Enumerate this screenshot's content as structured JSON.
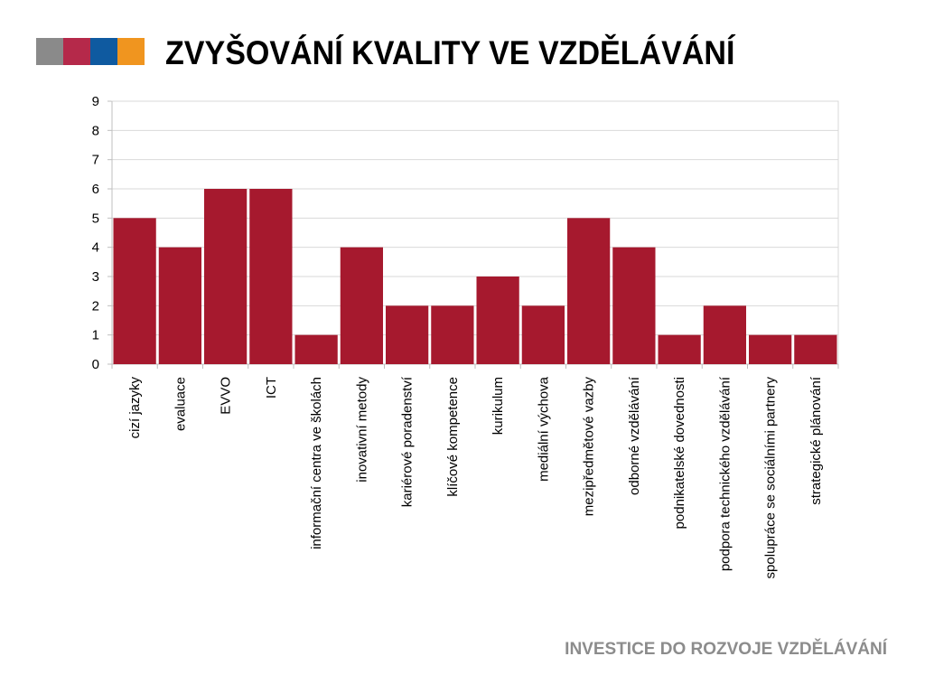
{
  "header": {
    "title": "ZVYŠOVÁNÍ KVALITY VE VZDĚLÁVÁNÍ",
    "logo_colors": [
      "#8a8a8a",
      "#b5294a",
      "#0f5aa0",
      "#f0951f"
    ]
  },
  "footer": {
    "text": "INVESTICE DO ROZVOJE VZDĚLÁVÁNÍ"
  },
  "chart_data": {
    "type": "bar",
    "title": "",
    "xlabel": "",
    "ylabel": "",
    "ylim": [
      0,
      9
    ],
    "yticks": [
      0,
      1,
      2,
      3,
      4,
      5,
      6,
      7,
      8,
      9
    ],
    "grid": true,
    "legend": "none",
    "bar_color": "#a6192e",
    "categories": [
      "cizí jazyky",
      "evaluace",
      "EVVO",
      "ICT",
      "informační centra ve školách",
      "inovativní metody",
      "kariérové poradenství",
      "klíčové kompetence",
      "kurikulum",
      "mediální výchova",
      "mezipředmětové vazby",
      "odborné vzdělávání",
      "podnikatelské dovednosti",
      "podpora technického vzdělávání",
      "spolupráce se sociálními partnery",
      "strategické plánování"
    ],
    "values": [
      5,
      4,
      6,
      6,
      1,
      4,
      2,
      2,
      3,
      2,
      5,
      4,
      1,
      2,
      1,
      1
    ]
  }
}
